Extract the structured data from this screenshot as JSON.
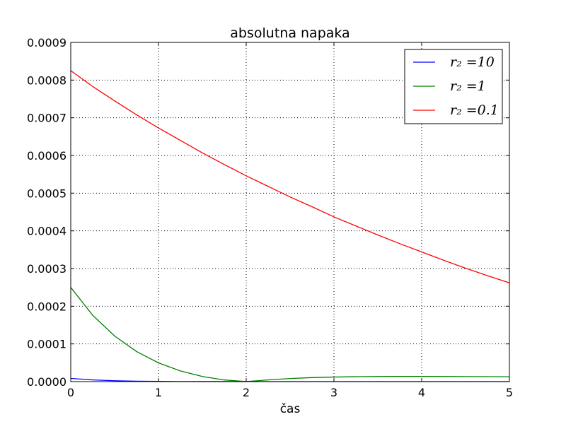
{
  "chart_data": {
    "type": "line",
    "title": "absolutna napaka",
    "xlabel": "čas",
    "ylabel": "",
    "xlim": [
      0,
      5
    ],
    "ylim": [
      0,
      0.0009
    ],
    "grid": true,
    "legend_position": "top-right",
    "x_ticks": [
      0,
      1,
      2,
      3,
      4,
      5
    ],
    "x_tick_labels": [
      "0",
      "1",
      "2",
      "3",
      "4",
      "5"
    ],
    "y_ticks": [
      0,
      0.0001,
      0.0002,
      0.0003,
      0.0004,
      0.0005,
      0.0006,
      0.0007,
      0.0008,
      0.0009
    ],
    "y_tick_labels": [
      "0.0000",
      "0.0001",
      "0.0002",
      "0.0003",
      "0.0004",
      "0.0005",
      "0.0006",
      "0.0007",
      "0.0008",
      "0.0009"
    ],
    "x": [
      0,
      0.25,
      0.5,
      0.75,
      1,
      1.25,
      1.5,
      1.75,
      2,
      2.25,
      2.5,
      2.75,
      3,
      3.25,
      3.5,
      3.75,
      4,
      4.25,
      4.5,
      4.75,
      5
    ],
    "series": [
      {
        "name": "r₂ =10",
        "color": "#0000ff",
        "values": [
          8.5e-06,
          4.5e-06,
          2.4e-06,
          1.2e-06,
          6e-07,
          3e-07,
          1.5e-07,
          8e-08,
          4e-08,
          2e-08,
          1e-08,
          0,
          0,
          0,
          0,
          0,
          0,
          0,
          0,
          0,
          0
        ]
      },
      {
        "name": "r₂ =1",
        "color": "#008000",
        "values": [
          0.00025,
          0.000176,
          0.000121,
          7.98e-05,
          4.97e-05,
          2.83e-05,
          1.36e-05,
          4.3e-06,
          2e-07,
          4.5e-06,
          8.2e-06,
          1.07e-05,
          1.21e-05,
          1.3e-05,
          1.35e-05,
          1.37e-05,
          1.37e-05,
          1.35e-05,
          1.33e-05,
          1.31e-05,
          1.29e-05
        ]
      },
      {
        "name": "r₂ =0.1",
        "color": "#ff0000",
        "values": [
          0.000825,
          0.000783,
          0.000745,
          0.000708,
          0.000673,
          0.00064,
          0.000607,
          0.000576,
          0.000546,
          0.000518,
          0.00049,
          0.000464,
          0.000437,
          0.000413,
          0.000389,
          0.000366,
          0.000344,
          0.000322,
          0.000301,
          0.000281,
          0.000262
        ]
      }
    ]
  }
}
